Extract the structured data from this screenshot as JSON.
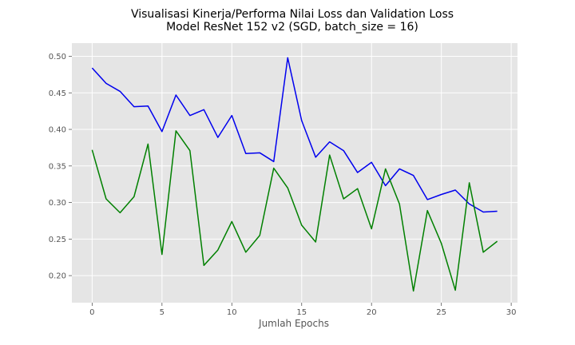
{
  "chart_data": {
    "type": "line",
    "title": "Visualisasi Kinerja/Performa Nilai Loss dan Validation Loss",
    "subtitle": "Model ResNet 152 v2 (SGD, batch_size = 16)",
    "xlabel": "Jumlah Epochs",
    "ylabel": "",
    "xlim": [
      -1.45,
      30.45
    ],
    "ylim": [
      0.163,
      0.518
    ],
    "xticks": [
      0,
      5,
      10,
      15,
      20,
      25,
      30
    ],
    "yticks": [
      0.2,
      0.25,
      0.3,
      0.35,
      0.4,
      0.45,
      0.5
    ],
    "ytick_labels": [
      "0.20",
      "0.25",
      "0.30",
      "0.35",
      "0.40",
      "0.45",
      "0.50"
    ],
    "grid": true,
    "background": "#e5e5e5",
    "x": [
      0,
      1,
      2,
      3,
      4,
      5,
      6,
      7,
      8,
      9,
      10,
      11,
      12,
      13,
      14,
      15,
      16,
      17,
      18,
      19,
      20,
      21,
      22,
      23,
      24,
      25,
      26,
      27,
      28,
      29
    ],
    "series": [
      {
        "color": "#0000ee",
        "values": [
          0.484,
          0.463,
          0.452,
          0.431,
          0.432,
          0.397,
          0.447,
          0.419,
          0.427,
          0.389,
          0.419,
          0.367,
          0.368,
          0.356,
          0.498,
          0.412,
          0.362,
          0.383,
          0.371,
          0.341,
          0.355,
          0.323,
          0.346,
          0.337,
          0.304,
          0.311,
          0.317,
          0.298,
          0.287,
          0.288
        ]
      },
      {
        "color": "#008000",
        "values": [
          0.372,
          0.305,
          0.286,
          0.308,
          0.38,
          0.229,
          0.398,
          0.371,
          0.214,
          0.235,
          0.274,
          0.232,
          0.255,
          0.347,
          0.32,
          0.269,
          0.246,
          0.365,
          0.305,
          0.319,
          0.264,
          0.346,
          0.298,
          0.179,
          0.289,
          0.244,
          0.18,
          0.327,
          0.232,
          0.247
        ]
      }
    ]
  }
}
